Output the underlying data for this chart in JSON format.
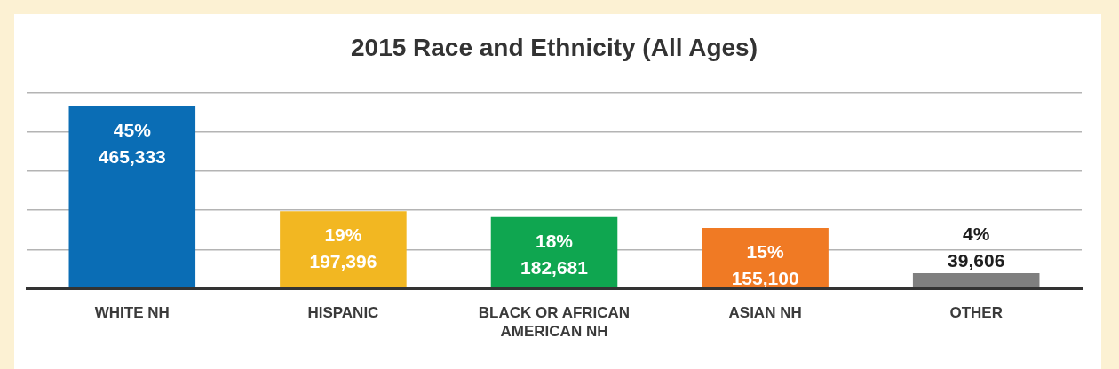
{
  "chart_data": {
    "type": "bar",
    "title": "2015 Race and Ethnicity (All Ages)",
    "categories": [
      "WHITE NH",
      "HISPANIC",
      "BLACK OR AFRICAN AMERICAN NH",
      "ASIAN NH",
      "OTHER"
    ],
    "values": [
      465333,
      197396,
      182681,
      155100,
      39606
    ],
    "colors": [
      "#0a6db5",
      "#f2b722",
      "#0fa650",
      "#f07a24",
      "#7f7f7f"
    ],
    "value_labels": [
      "45%\n465,333",
      "19%\n197,396",
      "18%\n182,681",
      "15%\n155,100",
      "4%\n39,606"
    ],
    "ylim": [
      0,
      500000
    ],
    "grid": "y",
    "tick_labels": "x"
  }
}
